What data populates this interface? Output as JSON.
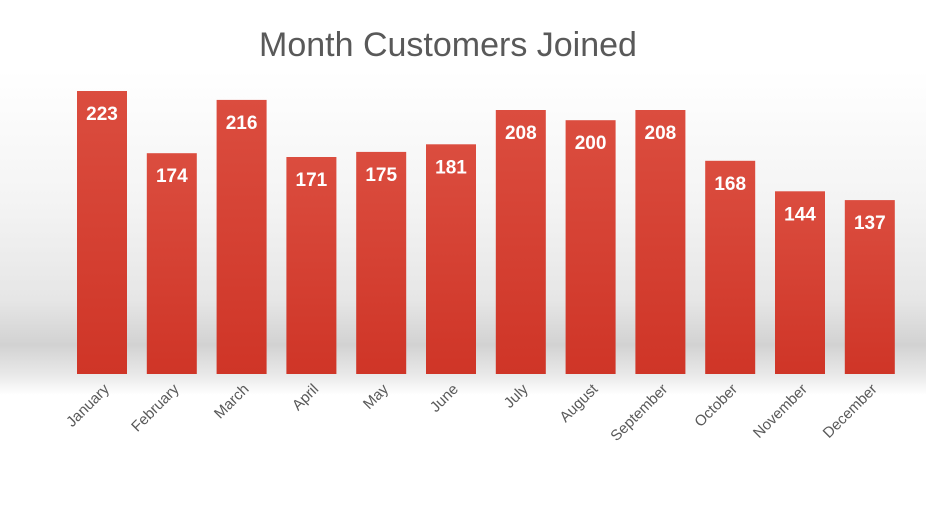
{
  "chart_data": {
    "type": "bar",
    "title": "Month Customers Joined",
    "categories": [
      "January",
      "February",
      "March",
      "April",
      "May",
      "June",
      "July",
      "August",
      "September",
      "October",
      "November",
      "December"
    ],
    "values": [
      223,
      174,
      216,
      171,
      175,
      181,
      208,
      200,
      208,
      168,
      144,
      137
    ],
    "xlabel": "",
    "ylabel": "",
    "ylim": [
      0,
      223
    ],
    "grid": false,
    "legend": "none",
    "data_labels": "inside-end",
    "bar_color": "#d63e2f",
    "bar_color_light": "#db4d3f",
    "bar_color_dark": "#cf3527"
  }
}
